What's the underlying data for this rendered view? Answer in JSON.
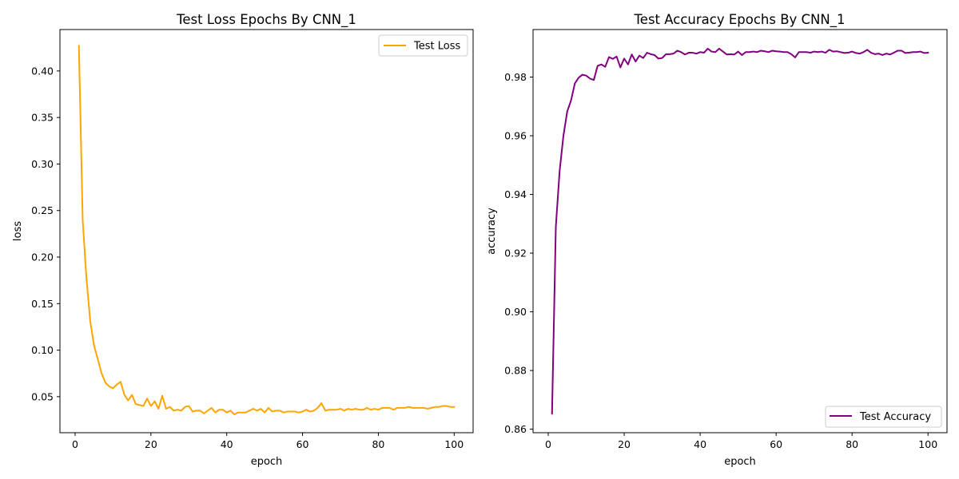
{
  "chart_data": [
    {
      "type": "line",
      "title": "Test Loss Epochs By CNN_1",
      "xlabel": "epoch",
      "ylabel": "loss",
      "xlim": [
        -4,
        105
      ],
      "ylim": [
        0.0113,
        0.4445
      ],
      "xticks": [
        0,
        20,
        40,
        60,
        80,
        100
      ],
      "yticks": [
        0.05,
        0.1,
        0.15,
        0.2,
        0.25,
        0.3,
        0.35,
        0.4
      ],
      "ytick_labels": [
        "0.05",
        "0.10",
        "0.15",
        "0.20",
        "0.25",
        "0.30",
        "0.35",
        "0.40"
      ],
      "grid": false,
      "legend_position": "upper right",
      "series": [
        {
          "name": "Test Loss",
          "color": "#ffa500",
          "x": [
            1,
            2,
            3,
            4,
            5,
            6,
            7,
            8,
            9,
            10,
            11,
            12,
            13,
            14,
            15,
            16,
            17,
            18,
            19,
            20,
            21,
            22,
            23,
            24,
            25,
            26,
            27,
            28,
            29,
            30,
            31,
            32,
            33,
            34,
            35,
            36,
            37,
            38,
            39,
            40,
            41,
            42,
            43,
            44,
            45,
            46,
            47,
            48,
            49,
            50,
            51,
            52,
            53,
            54,
            55,
            56,
            57,
            58,
            59,
            60,
            61,
            62,
            63,
            64,
            65,
            66,
            67,
            68,
            69,
            70,
            71,
            72,
            73,
            74,
            75,
            76,
            77,
            78,
            79,
            80,
            81,
            82,
            83,
            84,
            85,
            86,
            87,
            88,
            89,
            90,
            91,
            92,
            93,
            94,
            95,
            96,
            97,
            98,
            99,
            100
          ],
          "values": [
            0.427,
            0.24,
            0.177,
            0.131,
            0.105,
            0.09,
            0.075,
            0.065,
            0.061,
            0.059,
            0.063,
            0.066,
            0.052,
            0.046,
            0.052,
            0.042,
            0.041,
            0.04,
            0.048,
            0.04,
            0.045,
            0.037,
            0.051,
            0.037,
            0.039,
            0.035,
            0.036,
            0.035,
            0.039,
            0.04,
            0.034,
            0.035,
            0.035,
            0.032,
            0.035,
            0.038,
            0.033,
            0.036,
            0.036,
            0.033,
            0.035,
            0.031,
            0.033,
            0.033,
            0.033,
            0.035,
            0.037,
            0.035,
            0.037,
            0.033,
            0.038,
            0.034,
            0.035,
            0.035,
            0.033,
            0.034,
            0.034,
            0.034,
            0.033,
            0.034,
            0.036,
            0.034,
            0.035,
            0.038,
            0.043,
            0.035,
            0.036,
            0.036,
            0.036,
            0.037,
            0.035,
            0.037,
            0.036,
            0.037,
            0.036,
            0.036,
            0.038,
            0.036,
            0.037,
            0.036,
            0.038,
            0.038,
            0.038,
            0.036,
            0.038,
            0.038,
            0.038,
            0.039,
            0.038,
            0.038,
            0.038,
            0.038,
            0.037,
            0.038,
            0.039,
            0.039,
            0.04,
            0.04,
            0.039,
            0.039
          ]
        }
      ]
    },
    {
      "type": "line",
      "title": "Test Accuracy Epochs By CNN_1",
      "xlabel": "epoch",
      "ylabel": "accuracy",
      "xlim": [
        -4,
        105
      ],
      "ylim": [
        0.8588,
        0.9962
      ],
      "xticks": [
        0,
        20,
        40,
        60,
        80,
        100
      ],
      "yticks": [
        0.86,
        0.88,
        0.9,
        0.92,
        0.94,
        0.96,
        0.98
      ],
      "ytick_labels": [
        "0.86",
        "0.88",
        "0.90",
        "0.92",
        "0.94",
        "0.96",
        "0.98"
      ],
      "grid": false,
      "legend_position": "lower right",
      "series": [
        {
          "name": "Test Accuracy",
          "color": "#800080",
          "x": [
            1,
            2,
            3,
            4,
            5,
            6,
            7,
            8,
            9,
            10,
            11,
            12,
            13,
            14,
            15,
            16,
            17,
            18,
            19,
            20,
            21,
            22,
            23,
            24,
            25,
            26,
            27,
            28,
            29,
            30,
            31,
            32,
            33,
            34,
            35,
            36,
            37,
            38,
            39,
            40,
            41,
            42,
            43,
            44,
            45,
            46,
            47,
            48,
            49,
            50,
            51,
            52,
            53,
            54,
            55,
            56,
            57,
            58,
            59,
            60,
            61,
            62,
            63,
            64,
            65,
            66,
            67,
            68,
            69,
            70,
            71,
            72,
            73,
            74,
            75,
            76,
            77,
            78,
            79,
            80,
            81,
            82,
            83,
            84,
            85,
            86,
            87,
            88,
            89,
            90,
            91,
            92,
            93,
            94,
            95,
            96,
            97,
            98,
            99,
            100
          ],
          "values": [
            0.8653,
            0.929,
            0.948,
            0.96,
            0.9683,
            0.972,
            0.9778,
            0.9798,
            0.9808,
            0.9805,
            0.9795,
            0.979,
            0.9838,
            0.9843,
            0.9835,
            0.9868,
            0.9862,
            0.987,
            0.9833,
            0.9863,
            0.9843,
            0.9877,
            0.9853,
            0.9873,
            0.9865,
            0.9883,
            0.9878,
            0.9875,
            0.9863,
            0.9865,
            0.9878,
            0.9878,
            0.988,
            0.989,
            0.9885,
            0.9877,
            0.9883,
            0.9883,
            0.988,
            0.9885,
            0.9883,
            0.9897,
            0.9887,
            0.9885,
            0.9897,
            0.9887,
            0.9877,
            0.9878,
            0.9877,
            0.9887,
            0.9875,
            0.9885,
            0.9885,
            0.9887,
            0.9885,
            0.989,
            0.9888,
            0.9885,
            0.989,
            0.9888,
            0.9887,
            0.9885,
            0.9885,
            0.9878,
            0.9867,
            0.9885,
            0.9885,
            0.9885,
            0.9883,
            0.9887,
            0.9885,
            0.9887,
            0.9883,
            0.9893,
            0.9887,
            0.9888,
            0.9885,
            0.9882,
            0.9883,
            0.9887,
            0.9882,
            0.988,
            0.9885,
            0.9893,
            0.9883,
            0.9878,
            0.988,
            0.9875,
            0.988,
            0.9877,
            0.9883,
            0.989,
            0.989,
            0.9882,
            0.9883,
            0.9885,
            0.9885,
            0.9887,
            0.9882,
            0.9883
          ]
        }
      ]
    }
  ]
}
